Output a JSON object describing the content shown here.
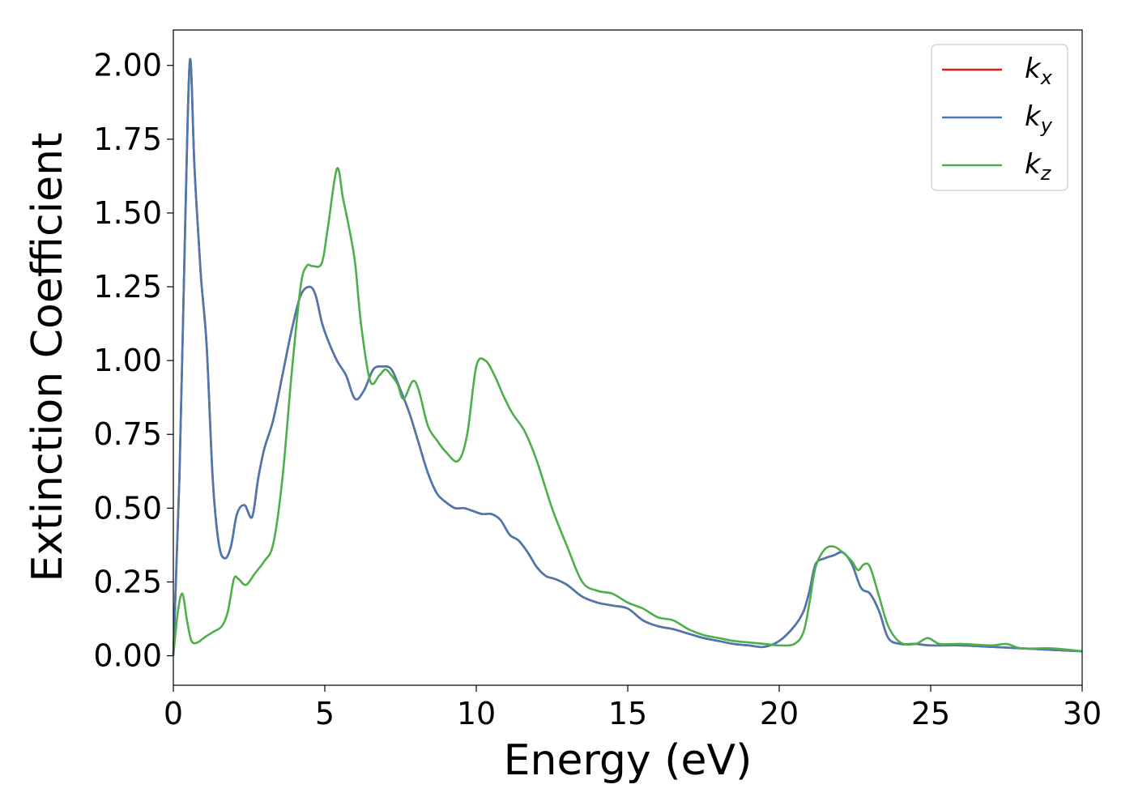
{
  "chart_data": {
    "type": "line",
    "xlabel": "Energy (eV)",
    "ylabel": "Extinction Coefficient",
    "xlim": [
      0,
      30
    ],
    "ylim": [
      -0.1,
      2.12
    ],
    "xticks": [
      "0",
      "5",
      "10",
      "15",
      "20",
      "25",
      "30"
    ],
    "yticks": [
      "0.00",
      "0.25",
      "0.50",
      "0.75",
      "1.00",
      "1.25",
      "1.50",
      "1.75",
      "2.00"
    ],
    "grid": false,
    "legend_position": "top-right",
    "series": [
      {
        "name": "k",
        "subscript": "x",
        "color": "#e41a1c",
        "x": [
          0,
          0.2,
          0.4,
          0.55,
          0.7,
          0.9,
          1.1,
          1.3,
          1.5,
          1.7,
          1.9,
          2.1,
          2.35,
          2.6,
          2.8,
          3.0,
          3.3,
          3.6,
          3.9,
          4.2,
          4.5,
          4.7,
          4.9,
          5.1,
          5.4,
          5.7,
          6.0,
          6.3,
          6.6,
          6.9,
          7.2,
          7.5,
          7.8,
          8.1,
          8.4,
          8.7,
          9.0,
          9.3,
          9.6,
          9.9,
          10.2,
          10.5,
          10.8,
          11.1,
          11.4,
          11.7,
          12.0,
          12.3,
          12.6,
          13.0,
          13.5,
          14.0,
          14.5,
          15.0,
          15.5,
          16.0,
          16.5,
          17.0,
          17.5,
          18.0,
          18.5,
          19.0,
          19.5,
          20.0,
          20.5,
          20.8,
          21.0,
          21.2,
          21.5,
          21.8,
          22.1,
          22.4,
          22.7,
          23.0,
          23.3,
          23.6,
          24.0,
          24.5,
          25.0,
          26.0,
          27.0,
          28.0,
          29.0,
          30.0
        ],
        "values": [
          0.0,
          0.6,
          1.5,
          2.02,
          1.65,
          1.3,
          1.05,
          0.6,
          0.38,
          0.33,
          0.37,
          0.48,
          0.51,
          0.47,
          0.6,
          0.7,
          0.8,
          0.95,
          1.1,
          1.22,
          1.25,
          1.22,
          1.13,
          1.07,
          1.0,
          0.95,
          0.87,
          0.9,
          0.97,
          0.98,
          0.97,
          0.9,
          0.82,
          0.72,
          0.62,
          0.55,
          0.52,
          0.5,
          0.5,
          0.49,
          0.48,
          0.48,
          0.46,
          0.41,
          0.39,
          0.35,
          0.3,
          0.27,
          0.26,
          0.24,
          0.2,
          0.18,
          0.17,
          0.16,
          0.12,
          0.1,
          0.09,
          0.075,
          0.06,
          0.05,
          0.04,
          0.035,
          0.03,
          0.05,
          0.1,
          0.15,
          0.22,
          0.31,
          0.33,
          0.34,
          0.35,
          0.31,
          0.23,
          0.21,
          0.15,
          0.06,
          0.04,
          0.04,
          0.035,
          0.035,
          0.03,
          0.025,
          0.02,
          0.015
        ]
      },
      {
        "name": "k",
        "subscript": "y",
        "color": "#4a78b0",
        "x": [
          0,
          0.2,
          0.4,
          0.55,
          0.7,
          0.9,
          1.1,
          1.3,
          1.5,
          1.7,
          1.9,
          2.1,
          2.35,
          2.6,
          2.8,
          3.0,
          3.3,
          3.6,
          3.9,
          4.2,
          4.5,
          4.7,
          4.9,
          5.1,
          5.4,
          5.7,
          6.0,
          6.3,
          6.6,
          6.9,
          7.2,
          7.5,
          7.8,
          8.1,
          8.4,
          8.7,
          9.0,
          9.3,
          9.6,
          9.9,
          10.2,
          10.5,
          10.8,
          11.1,
          11.4,
          11.7,
          12.0,
          12.3,
          12.6,
          13.0,
          13.5,
          14.0,
          14.5,
          15.0,
          15.5,
          16.0,
          16.5,
          17.0,
          17.5,
          18.0,
          18.5,
          19.0,
          19.5,
          20.0,
          20.5,
          20.8,
          21.0,
          21.2,
          21.5,
          21.8,
          22.1,
          22.4,
          22.7,
          23.0,
          23.3,
          23.6,
          24.0,
          24.5,
          25.0,
          26.0,
          27.0,
          28.0,
          29.0,
          30.0
        ],
        "values": [
          0.0,
          0.6,
          1.5,
          2.02,
          1.65,
          1.3,
          1.05,
          0.6,
          0.38,
          0.33,
          0.37,
          0.48,
          0.51,
          0.47,
          0.6,
          0.7,
          0.8,
          0.95,
          1.1,
          1.22,
          1.25,
          1.22,
          1.13,
          1.07,
          1.0,
          0.95,
          0.87,
          0.9,
          0.97,
          0.98,
          0.97,
          0.9,
          0.82,
          0.72,
          0.62,
          0.55,
          0.52,
          0.5,
          0.5,
          0.49,
          0.48,
          0.48,
          0.46,
          0.41,
          0.39,
          0.35,
          0.3,
          0.27,
          0.26,
          0.24,
          0.2,
          0.18,
          0.17,
          0.16,
          0.12,
          0.1,
          0.09,
          0.075,
          0.06,
          0.05,
          0.04,
          0.035,
          0.03,
          0.05,
          0.1,
          0.15,
          0.22,
          0.31,
          0.33,
          0.34,
          0.35,
          0.31,
          0.23,
          0.21,
          0.15,
          0.06,
          0.04,
          0.04,
          0.035,
          0.035,
          0.03,
          0.025,
          0.02,
          0.015
        ]
      },
      {
        "name": "k",
        "subscript": "z",
        "color": "#4daf4a",
        "x": [
          0,
          0.15,
          0.3,
          0.45,
          0.6,
          0.8,
          1.0,
          1.3,
          1.6,
          1.8,
          2.0,
          2.15,
          2.4,
          2.7,
          3.0,
          3.3,
          3.6,
          3.9,
          4.2,
          4.4,
          4.6,
          4.9,
          5.1,
          5.4,
          5.6,
          5.8,
          6.0,
          6.2,
          6.5,
          6.8,
          7.0,
          7.2,
          7.4,
          7.6,
          7.9,
          8.1,
          8.4,
          8.7,
          9.0,
          9.4,
          9.7,
          10.0,
          10.3,
          10.6,
          10.9,
          11.2,
          11.6,
          12.0,
          12.5,
          13.0,
          13.5,
          14.0,
          14.5,
          15.0,
          15.5,
          16.0,
          16.5,
          17.0,
          17.5,
          18.0,
          18.5,
          19.0,
          19.5,
          20.0,
          20.5,
          20.8,
          21.0,
          21.2,
          21.5,
          21.8,
          22.1,
          22.4,
          22.6,
          22.8,
          23.0,
          23.3,
          23.6,
          24.0,
          24.5,
          24.9,
          25.3,
          26.0,
          27.0,
          27.5,
          28.0,
          29.0,
          30.0
        ],
        "values": [
          0.0,
          0.15,
          0.21,
          0.12,
          0.05,
          0.045,
          0.06,
          0.08,
          0.1,
          0.15,
          0.26,
          0.26,
          0.24,
          0.28,
          0.32,
          0.38,
          0.6,
          0.95,
          1.25,
          1.32,
          1.32,
          1.33,
          1.45,
          1.65,
          1.55,
          1.45,
          1.33,
          1.12,
          0.93,
          0.95,
          0.97,
          0.95,
          0.92,
          0.87,
          0.93,
          0.9,
          0.78,
          0.73,
          0.69,
          0.66,
          0.75,
          0.98,
          1.0,
          0.95,
          0.88,
          0.82,
          0.76,
          0.66,
          0.5,
          0.37,
          0.25,
          0.22,
          0.21,
          0.18,
          0.16,
          0.13,
          0.12,
          0.09,
          0.07,
          0.06,
          0.05,
          0.045,
          0.04,
          0.035,
          0.04,
          0.08,
          0.18,
          0.3,
          0.36,
          0.37,
          0.35,
          0.32,
          0.29,
          0.31,
          0.3,
          0.2,
          0.1,
          0.045,
          0.04,
          0.06,
          0.04,
          0.04,
          0.035,
          0.04,
          0.025,
          0.025,
          0.015
        ]
      }
    ]
  }
}
